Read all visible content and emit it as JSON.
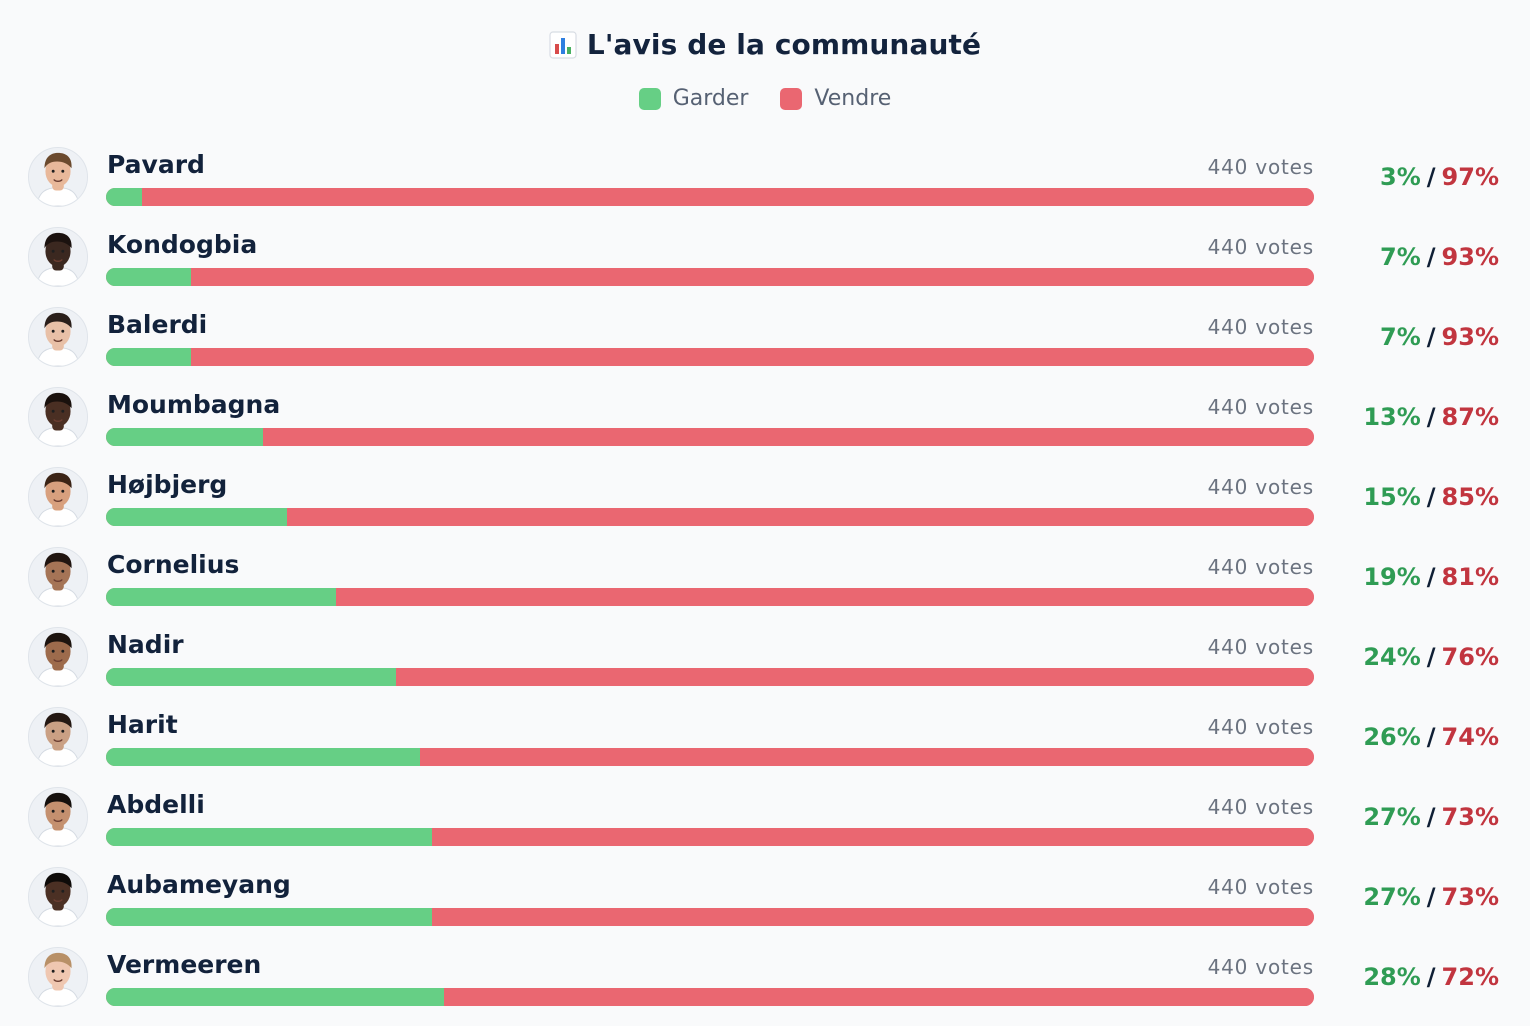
{
  "title": "L'avis de la communauté",
  "title_icon": "bar-chart-icon",
  "legend": [
    {
      "label": "Garder",
      "color": "#66cf85"
    },
    {
      "label": "Vendre",
      "color": "#ea6771"
    }
  ],
  "chart_data": {
    "type": "bar",
    "orientation": "horizontal",
    "stacked": true,
    "title": "L'avis de la communauté",
    "categories": [
      "Pavard",
      "Kondogbia",
      "Balerdi",
      "Moumbagna",
      "Højbjerg",
      "Cornelius",
      "Nadir",
      "Harit",
      "Abdelli",
      "Aubameyang",
      "Vermeeren"
    ],
    "series": [
      {
        "name": "Garder",
        "color": "#66cf85",
        "values": [
          3,
          7,
          7,
          13,
          15,
          19,
          24,
          26,
          27,
          27,
          28
        ]
      },
      {
        "name": "Vendre",
        "color": "#ea6771",
        "values": [
          97,
          93,
          93,
          87,
          85,
          81,
          76,
          74,
          73,
          73,
          72
        ]
      }
    ],
    "xlim": [
      0,
      100
    ],
    "grid": false,
    "legend_position": "top-center"
  },
  "rows": [
    {
      "name": "Pavard",
      "votes": "440 votes",
      "keep_pct": "3%",
      "sell_pct": "97%"
    },
    {
      "name": "Kondogbia",
      "votes": "440 votes",
      "keep_pct": "7%",
      "sell_pct": "93%"
    },
    {
      "name": "Balerdi",
      "votes": "440 votes",
      "keep_pct": "7%",
      "sell_pct": "93%"
    },
    {
      "name": "Moumbagna",
      "votes": "440 votes",
      "keep_pct": "13%",
      "sell_pct": "87%"
    },
    {
      "name": "Højbjerg",
      "votes": "440 votes",
      "keep_pct": "15%",
      "sell_pct": "85%"
    },
    {
      "name": "Cornelius",
      "votes": "440 votes",
      "keep_pct": "19%",
      "sell_pct": "81%"
    },
    {
      "name": "Nadir",
      "votes": "440 votes",
      "keep_pct": "24%",
      "sell_pct": "76%"
    },
    {
      "name": "Harit",
      "votes": "440 votes",
      "keep_pct": "26%",
      "sell_pct": "74%"
    },
    {
      "name": "Abdelli",
      "votes": "440 votes",
      "keep_pct": "27%",
      "sell_pct": "73%"
    },
    {
      "name": "Aubameyang",
      "votes": "440 votes",
      "keep_pct": "27%",
      "sell_pct": "73%"
    },
    {
      "name": "Vermeeren",
      "votes": "440 votes",
      "keep_pct": "28%",
      "sell_pct": "72%"
    }
  ],
  "separator": "/",
  "avatars": [
    {
      "icon": "player-avatar-icon",
      "skin": "#e8b89a",
      "hair": "#6b4a2e"
    },
    {
      "icon": "player-avatar-icon",
      "skin": "#3b2820",
      "hair": "#1b120f"
    },
    {
      "icon": "player-avatar-icon",
      "skin": "#e8c0a7",
      "hair": "#2a1f1a"
    },
    {
      "icon": "player-avatar-icon",
      "skin": "#4a2f23",
      "hair": "#1a110d"
    },
    {
      "icon": "player-avatar-icon",
      "skin": "#d8a07e",
      "hair": "#3b2416"
    },
    {
      "icon": "player-avatar-icon",
      "skin": "#a57456",
      "hair": "#201510"
    },
    {
      "icon": "player-avatar-icon",
      "skin": "#9d6b4c",
      "hair": "#1d140f"
    },
    {
      "icon": "player-avatar-icon",
      "skin": "#caa084",
      "hair": "#241812"
    },
    {
      "icon": "player-avatar-icon",
      "skin": "#c4906f",
      "hair": "#15100d"
    },
    {
      "icon": "player-avatar-icon",
      "skin": "#4b3024",
      "hair": "#0e0b09"
    },
    {
      "icon": "player-avatar-icon",
      "skin": "#efc7b1",
      "hair": "#b89067"
    }
  ]
}
